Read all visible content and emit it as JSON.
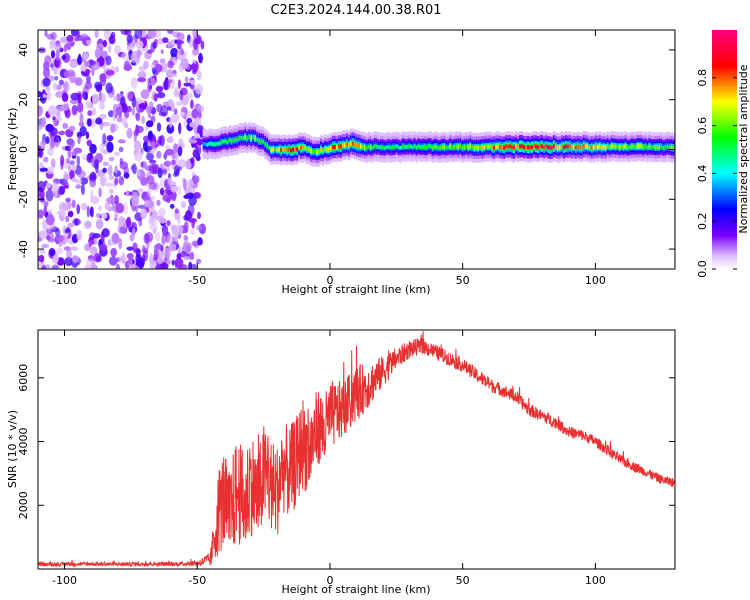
{
  "figure_title": "C2E3.2024.144.00.38.R01",
  "chart_data": [
    {
      "type": "heatmap",
      "xlabel": "Height of straight line (km)",
      "ylabel": "Frequency (Hz)",
      "xlim": [
        -110,
        130
      ],
      "ylim": [
        -48,
        48
      ],
      "x_ticks": [
        -100,
        -50,
        0,
        50,
        100
      ],
      "x_tick_labels": [
        "-100",
        "-50",
        "0",
        "50",
        "100"
      ],
      "y_ticks": [
        -40,
        -20,
        0,
        20,
        40
      ],
      "y_tick_labels": [
        "-40",
        "-20",
        "0",
        "20",
        "40"
      ],
      "noise_region_x": [
        -110,
        -48
      ],
      "signal_ridge": {
        "x": [
          -48,
          -45,
          -40,
          -35,
          -30,
          -25,
          -22,
          -18,
          -14,
          -10,
          -6,
          -2,
          2,
          6,
          10,
          14,
          20,
          30,
          50,
          70,
          90,
          110,
          130
        ],
        "center_hz": [
          2,
          2,
          3,
          4,
          5,
          3,
          0,
          0,
          0,
          1,
          -1,
          0,
          1,
          2,
          2,
          1,
          1,
          1,
          1,
          1,
          1,
          1,
          1
        ],
        "peak_amplitude": [
          0.35,
          0.45,
          0.5,
          0.55,
          0.6,
          0.5,
          0.6,
          0.75,
          0.8,
          0.7,
          0.6,
          0.7,
          0.75,
          0.8,
          0.75,
          0.6,
          0.45,
          0.5,
          0.6,
          0.85,
          0.8,
          0.6,
          0.55
        ]
      },
      "colorbar": {
        "label": "Normalized spectral amplitude",
        "range": [
          0,
          1
        ],
        "ticks": [
          0.0,
          0.2,
          0.4,
          0.6,
          0.8
        ],
        "tick_labels": [
          "0.0",
          "0.2",
          "0.4",
          "0.6",
          "0.8"
        ],
        "colors": [
          "#ffffff",
          "#7b00ff",
          "#0000ff",
          "#00ffff",
          "#00ff00",
          "#ffff00",
          "#ff0000",
          "#ff0080"
        ]
      },
      "grid": false
    },
    {
      "type": "line",
      "xlabel": "Height of straight line (km)",
      "ylabel": "SNR (10 * v/v)",
      "xlim": [
        -110,
        130
      ],
      "ylim": [
        0,
        7500
      ],
      "x_ticks": [
        -100,
        -50,
        0,
        50,
        100
      ],
      "x_tick_labels": [
        "-100",
        "-50",
        "0",
        "50",
        "100"
      ],
      "y_ticks": [
        2000,
        4000,
        6000
      ],
      "y_tick_labels": [
        "2000",
        "4000",
        "6000"
      ],
      "color": "#e83030",
      "grid": false,
      "series": [
        {
          "x": [
            -110,
            -100,
            -90,
            -80,
            -70,
            -60,
            -50,
            -45,
            -42,
            -40,
            -38,
            -35,
            -32,
            -30,
            -27,
            -25,
            -22,
            -20,
            -18,
            -15,
            -12,
            -10,
            -8,
            -6,
            -4,
            -2,
            0,
            5,
            10,
            15,
            20,
            25,
            30,
            35,
            40,
            45,
            50,
            55,
            60,
            65,
            70,
            75,
            80,
            85,
            90,
            95,
            100,
            105,
            110,
            115,
            120,
            125,
            130
          ],
          "values": [
            150,
            150,
            160,
            150,
            160,
            150,
            180,
            300,
            1800,
            2200,
            1600,
            2500,
            2000,
            2800,
            2200,
            3000,
            2600,
            2400,
            3200,
            3000,
            3500,
            4000,
            3600,
            4200,
            4500,
            4300,
            4800,
            5000,
            5500,
            5800,
            6200,
            6600,
            6900,
            7000,
            6800,
            6600,
            6400,
            6100,
            5800,
            5600,
            5400,
            5000,
            4800,
            4600,
            4300,
            4200,
            4000,
            3700,
            3400,
            3200,
            3000,
            2800,
            2700
          ],
          "noise_amplitude": [
            60,
            60,
            60,
            60,
            60,
            60,
            80,
            250,
            1400,
            1600,
            1500,
            1700,
            1600,
            1700,
            1500,
            1600,
            1500,
            1500,
            1400,
            1500,
            1400,
            1500,
            1300,
            1300,
            1200,
            1200,
            1100,
            900,
            900,
            700,
            500,
            350,
            280,
            250,
            240,
            230,
            220,
            220,
            210,
            200,
            200,
            200,
            190,
            180,
            180,
            180,
            170,
            170,
            160,
            160,
            150,
            150,
            150
          ]
        }
      ]
    }
  ]
}
